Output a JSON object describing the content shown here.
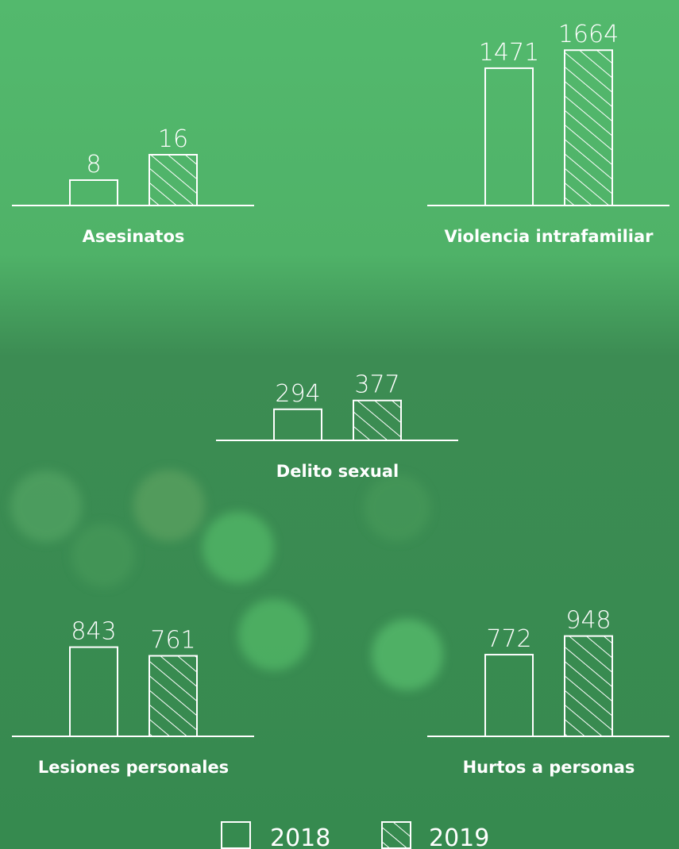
{
  "legend": {
    "series": [
      {
        "name": "2018",
        "pattern": "none"
      },
      {
        "name": "2019",
        "pattern": "hatch"
      }
    ]
  },
  "chart_data": [
    {
      "type": "bar",
      "title": "Asesinatos",
      "values": [
        8,
        16
      ],
      "color": "#ffffff",
      "ylim": [
        0,
        50
      ]
    },
    {
      "type": "bar",
      "title": "Violencia intrafamiliar",
      "values": [
        1471,
        1664
      ],
      "color": "#ffffff",
      "ylim": [
        0,
        1700
      ]
    },
    {
      "type": "bar",
      "title": "Delito sexual",
      "values": [
        294,
        377
      ],
      "color": "#ffffff",
      "ylim": [
        0,
        1500
      ]
    },
    {
      "type": "bar",
      "title": "Lesiones personales",
      "values": [
        843,
        761
      ],
      "color": "#ffffff",
      "ylim": [
        0,
        1500
      ]
    },
    {
      "type": "bar",
      "title": "Hurtos a personas",
      "values": [
        772,
        948
      ],
      "color": "#ffffff",
      "ylim": [
        0,
        1500
      ]
    }
  ]
}
